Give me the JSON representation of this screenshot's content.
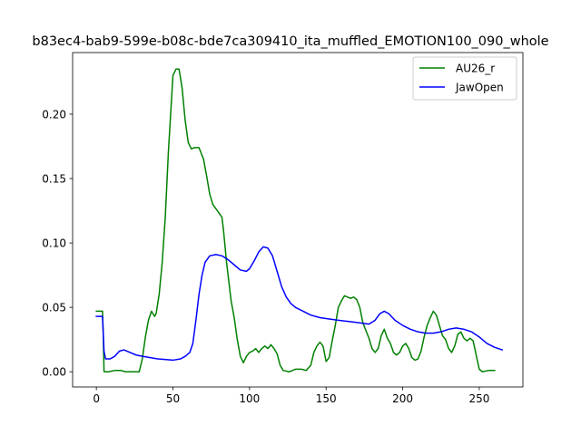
{
  "chart_data": {
    "type": "line",
    "title": "b83ec4-bab9-599e-b08c-bde7ca309410_ita_muffled_EMOTION100_090_whole",
    "xlabel": "",
    "ylabel": "",
    "xlim": [
      -15.5,
      278.5
    ],
    "ylim": [
      -0.0118,
      0.2478
    ],
    "xticks": [
      0,
      50,
      100,
      150,
      200,
      250
    ],
    "yticks": [
      0.0,
      0.05,
      0.1,
      0.15,
      0.2
    ],
    "xtick_labels": [
      "0",
      "50",
      "100",
      "150",
      "200",
      "250"
    ],
    "ytick_labels": [
      "0.00",
      "0.05",
      "0.10",
      "0.15",
      "0.20"
    ],
    "grid": false,
    "legend_position": "top-right",
    "series": [
      {
        "name": "AU26_r",
        "color": "#008000",
        "points": [
          [
            0,
            0.047
          ],
          [
            4,
            0.047
          ],
          [
            4.5,
            0.03
          ],
          [
            5,
            0.0
          ],
          [
            8,
            0.0
          ],
          [
            12,
            0.001
          ],
          [
            16,
            0.001
          ],
          [
            19,
            0.0
          ],
          [
            23,
            0.0
          ],
          [
            28,
            0.0
          ],
          [
            30,
            0.01
          ],
          [
            32,
            0.027
          ],
          [
            34,
            0.04
          ],
          [
            36,
            0.047
          ],
          [
            38,
            0.043
          ],
          [
            39,
            0.045
          ],
          [
            41,
            0.06
          ],
          [
            43,
            0.085
          ],
          [
            45,
            0.12
          ],
          [
            47,
            0.17
          ],
          [
            49,
            0.21
          ],
          [
            50,
            0.23
          ],
          [
            52,
            0.235
          ],
          [
            54,
            0.235
          ],
          [
            56,
            0.22
          ],
          [
            58,
            0.195
          ],
          [
            60,
            0.178
          ],
          [
            62,
            0.173
          ],
          [
            64,
            0.174
          ],
          [
            67,
            0.174
          ],
          [
            70,
            0.165
          ],
          [
            72,
            0.152
          ],
          [
            74,
            0.138
          ],
          [
            76,
            0.13
          ],
          [
            79,
            0.125
          ],
          [
            82,
            0.12
          ],
          [
            83,
            0.11
          ],
          [
            85,
            0.085
          ],
          [
            88,
            0.055
          ],
          [
            90,
            0.042
          ],
          [
            92,
            0.025
          ],
          [
            94,
            0.012
          ],
          [
            96,
            0.007
          ],
          [
            98,
            0.012
          ],
          [
            100,
            0.015
          ],
          [
            102,
            0.016
          ],
          [
            104,
            0.018
          ],
          [
            106,
            0.015
          ],
          [
            108,
            0.018
          ],
          [
            110,
            0.02
          ],
          [
            112,
            0.018
          ],
          [
            114,
            0.021
          ],
          [
            116,
            0.018
          ],
          [
            118,
            0.014
          ],
          [
            120,
            0.005
          ],
          [
            122,
            0.001
          ],
          [
            126,
            0.0
          ],
          [
            130,
            0.002
          ],
          [
            134,
            0.002
          ],
          [
            137,
            0.001
          ],
          [
            140,
            0.005
          ],
          [
            142,
            0.015
          ],
          [
            144,
            0.02
          ],
          [
            146,
            0.023
          ],
          [
            148,
            0.02
          ],
          [
            150,
            0.008
          ],
          [
            152,
            0.011
          ],
          [
            154,
            0.024
          ],
          [
            156,
            0.036
          ],
          [
            158,
            0.05
          ],
          [
            160,
            0.055
          ],
          [
            162,
            0.059
          ],
          [
            164,
            0.058
          ],
          [
            166,
            0.057
          ],
          [
            168,
            0.058
          ],
          [
            170,
            0.056
          ],
          [
            172,
            0.05
          ],
          [
            174,
            0.038
          ],
          [
            176,
            0.032
          ],
          [
            178,
            0.026
          ],
          [
            180,
            0.018
          ],
          [
            182,
            0.015
          ],
          [
            184,
            0.018
          ],
          [
            186,
            0.028
          ],
          [
            188,
            0.033
          ],
          [
            190,
            0.026
          ],
          [
            192,
            0.022
          ],
          [
            194,
            0.015
          ],
          [
            196,
            0.013
          ],
          [
            198,
            0.015
          ],
          [
            200,
            0.02
          ],
          [
            202,
            0.022
          ],
          [
            204,
            0.018
          ],
          [
            206,
            0.011
          ],
          [
            208,
            0.009
          ],
          [
            210,
            0.01
          ],
          [
            212,
            0.016
          ],
          [
            214,
            0.027
          ],
          [
            216,
            0.036
          ],
          [
            218,
            0.042
          ],
          [
            220,
            0.047
          ],
          [
            222,
            0.044
          ],
          [
            224,
            0.036
          ],
          [
            226,
            0.028
          ],
          [
            228,
            0.025
          ],
          [
            230,
            0.018
          ],
          [
            232,
            0.015
          ],
          [
            234,
            0.02
          ],
          [
            236,
            0.029
          ],
          [
            238,
            0.031
          ],
          [
            240,
            0.026
          ],
          [
            242,
            0.024
          ],
          [
            244,
            0.026
          ],
          [
            246,
            0.024
          ],
          [
            248,
            0.013
          ],
          [
            250,
            0.002
          ],
          [
            252,
            0.0
          ],
          [
            256,
            0.001
          ],
          [
            260,
            0.001
          ]
        ]
      },
      {
        "name": "JawOpen",
        "color": "#0000ff",
        "points": [
          [
            0,
            0.043
          ],
          [
            4,
            0.043
          ],
          [
            5,
            0.016
          ],
          [
            6,
            0.01
          ],
          [
            9,
            0.01
          ],
          [
            12,
            0.012
          ],
          [
            15,
            0.016
          ],
          [
            18,
            0.017
          ],
          [
            22,
            0.015
          ],
          [
            26,
            0.013
          ],
          [
            30,
            0.012
          ],
          [
            40,
            0.01
          ],
          [
            50,
            0.009
          ],
          [
            55,
            0.01
          ],
          [
            58,
            0.012
          ],
          [
            61,
            0.015
          ],
          [
            63,
            0.022
          ],
          [
            65,
            0.04
          ],
          [
            67,
            0.06
          ],
          [
            69,
            0.075
          ],
          [
            71,
            0.085
          ],
          [
            74,
            0.09
          ],
          [
            78,
            0.091
          ],
          [
            82,
            0.09
          ],
          [
            86,
            0.087
          ],
          [
            90,
            0.083
          ],
          [
            94,
            0.079
          ],
          [
            98,
            0.078
          ],
          [
            100,
            0.08
          ],
          [
            103,
            0.086
          ],
          [
            106,
            0.093
          ],
          [
            109,
            0.097
          ],
          [
            112,
            0.096
          ],
          [
            115,
            0.09
          ],
          [
            118,
            0.078
          ],
          [
            121,
            0.066
          ],
          [
            124,
            0.058
          ],
          [
            127,
            0.053
          ],
          [
            130,
            0.05
          ],
          [
            135,
            0.047
          ],
          [
            140,
            0.044
          ],
          [
            146,
            0.042
          ],
          [
            152,
            0.041
          ],
          [
            158,
            0.04
          ],
          [
            165,
            0.039
          ],
          [
            172,
            0.038
          ],
          [
            178,
            0.037
          ],
          [
            182,
            0.04
          ],
          [
            185,
            0.045
          ],
          [
            188,
            0.047
          ],
          [
            191,
            0.045
          ],
          [
            195,
            0.04
          ],
          [
            200,
            0.036
          ],
          [
            205,
            0.033
          ],
          [
            210,
            0.031
          ],
          [
            215,
            0.03
          ],
          [
            220,
            0.03
          ],
          [
            225,
            0.031
          ],
          [
            230,
            0.033
          ],
          [
            235,
            0.034
          ],
          [
            240,
            0.033
          ],
          [
            245,
            0.031
          ],
          [
            250,
            0.027
          ],
          [
            255,
            0.022
          ],
          [
            260,
            0.019
          ],
          [
            265,
            0.017
          ]
        ]
      }
    ]
  }
}
